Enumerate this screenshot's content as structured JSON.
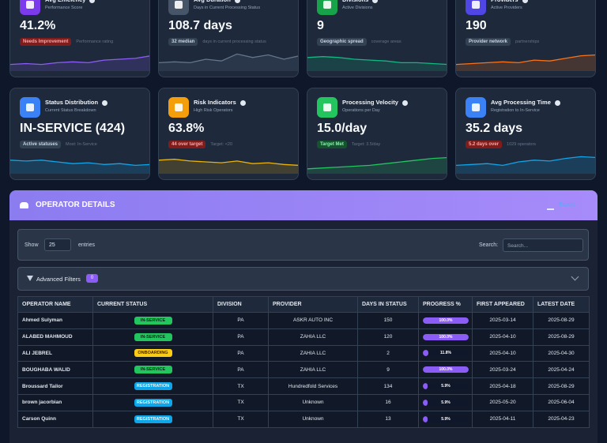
{
  "cards": [
    {
      "title": "Avg Efficiency",
      "subtitle": "Performance Score",
      "value": "41.2%",
      "badge": "Needs Improvement",
      "note": "Performance rating"
    },
    {
      "title": "Avg Duration",
      "subtitle": "Days in Current Processing Status",
      "value": "108.7 days",
      "badge": "32 median",
      "note": "days in current processing status"
    },
    {
      "title": "Divisions",
      "subtitle": "Active Divisions",
      "value": "9",
      "badge": "Geographic spread",
      "note": "coverage areas"
    },
    {
      "title": "Providers",
      "subtitle": "Active Providers",
      "value": "190",
      "badge": "Provider network",
      "note": "partnerships"
    },
    {
      "title": "Status Distribution",
      "subtitle": "Current Status Breakdown",
      "value": "IN-SERVICE (424)",
      "badge": "Active statuses",
      "note": "Most: In-Service"
    },
    {
      "title": "Risk Indicators",
      "subtitle": "High Risk Operators",
      "value": "63.8%",
      "badge": "44 over target",
      "note": "Target: <20"
    },
    {
      "title": "Processing Velocity",
      "subtitle": "Operations per Day",
      "value": "15.0/day",
      "badge": "Target Met",
      "note": "Target: 3.5/day"
    },
    {
      "title": "Avg Processing Time",
      "subtitle": "Registration to In-Service",
      "value": "35.2 days",
      "badge": "5.2 days over",
      "note": "1029 operators"
    }
  ],
  "section": {
    "title": "OPERATOR DETAILS",
    "export": "Export"
  },
  "controls": {
    "show": "Show",
    "length": "25",
    "entries": "entries",
    "search_label": "Search:",
    "search_placeholder": "Search..."
  },
  "filters": {
    "label": "Advanced Filters",
    "count": 0
  },
  "table": {
    "headers": [
      "OPERATOR NAME",
      "CURRENT STATUS",
      "DIVISION",
      "PROVIDER",
      "DAYS IN STATUS",
      "PROGRESS %",
      "FIRST APPEARED",
      "LATEST DATE"
    ],
    "rows": [
      [
        "Ahmed Sulyman",
        "IN-SERVICE",
        "PA",
        "ASKR AUTO INC",
        150,
        "100.0%",
        "2025-03-14",
        "2025-08-29"
      ],
      [
        "ALABED MAHMOUD",
        "IN-SERVICE",
        "PA",
        "ZAHIA LLC",
        120,
        "100.0%",
        "2025-04-10",
        "2025-08-29"
      ],
      [
        "ALI JEBREL",
        "ONBOARDING",
        "PA",
        "ZAHIA LLC",
        2,
        "11.8%",
        "2025-04-10",
        "2025-04-30"
      ],
      [
        "BOUGHABA WALID",
        "IN-SERVICE",
        "PA",
        "ZAHIA LLC",
        9,
        "100.0%",
        "2025-03-24",
        "2025-04-24"
      ],
      [
        "Broussard Tailor",
        "REGISTRATION",
        "TX",
        "Hundredfold Services",
        134,
        "5.9%",
        "2025-04-18",
        "2025-08-29"
      ],
      [
        "brown jacorbian",
        "REGISTRATION",
        "TX",
        "Unknown",
        16,
        "5.9%",
        "2025-05-20",
        "2025-06-04"
      ],
      [
        "Carson Quinn",
        "REGISTRATION",
        "TX",
        "Unknown",
        13,
        "5.9%",
        "2025-04-11",
        "2025-04-23"
      ]
    ]
  }
}
